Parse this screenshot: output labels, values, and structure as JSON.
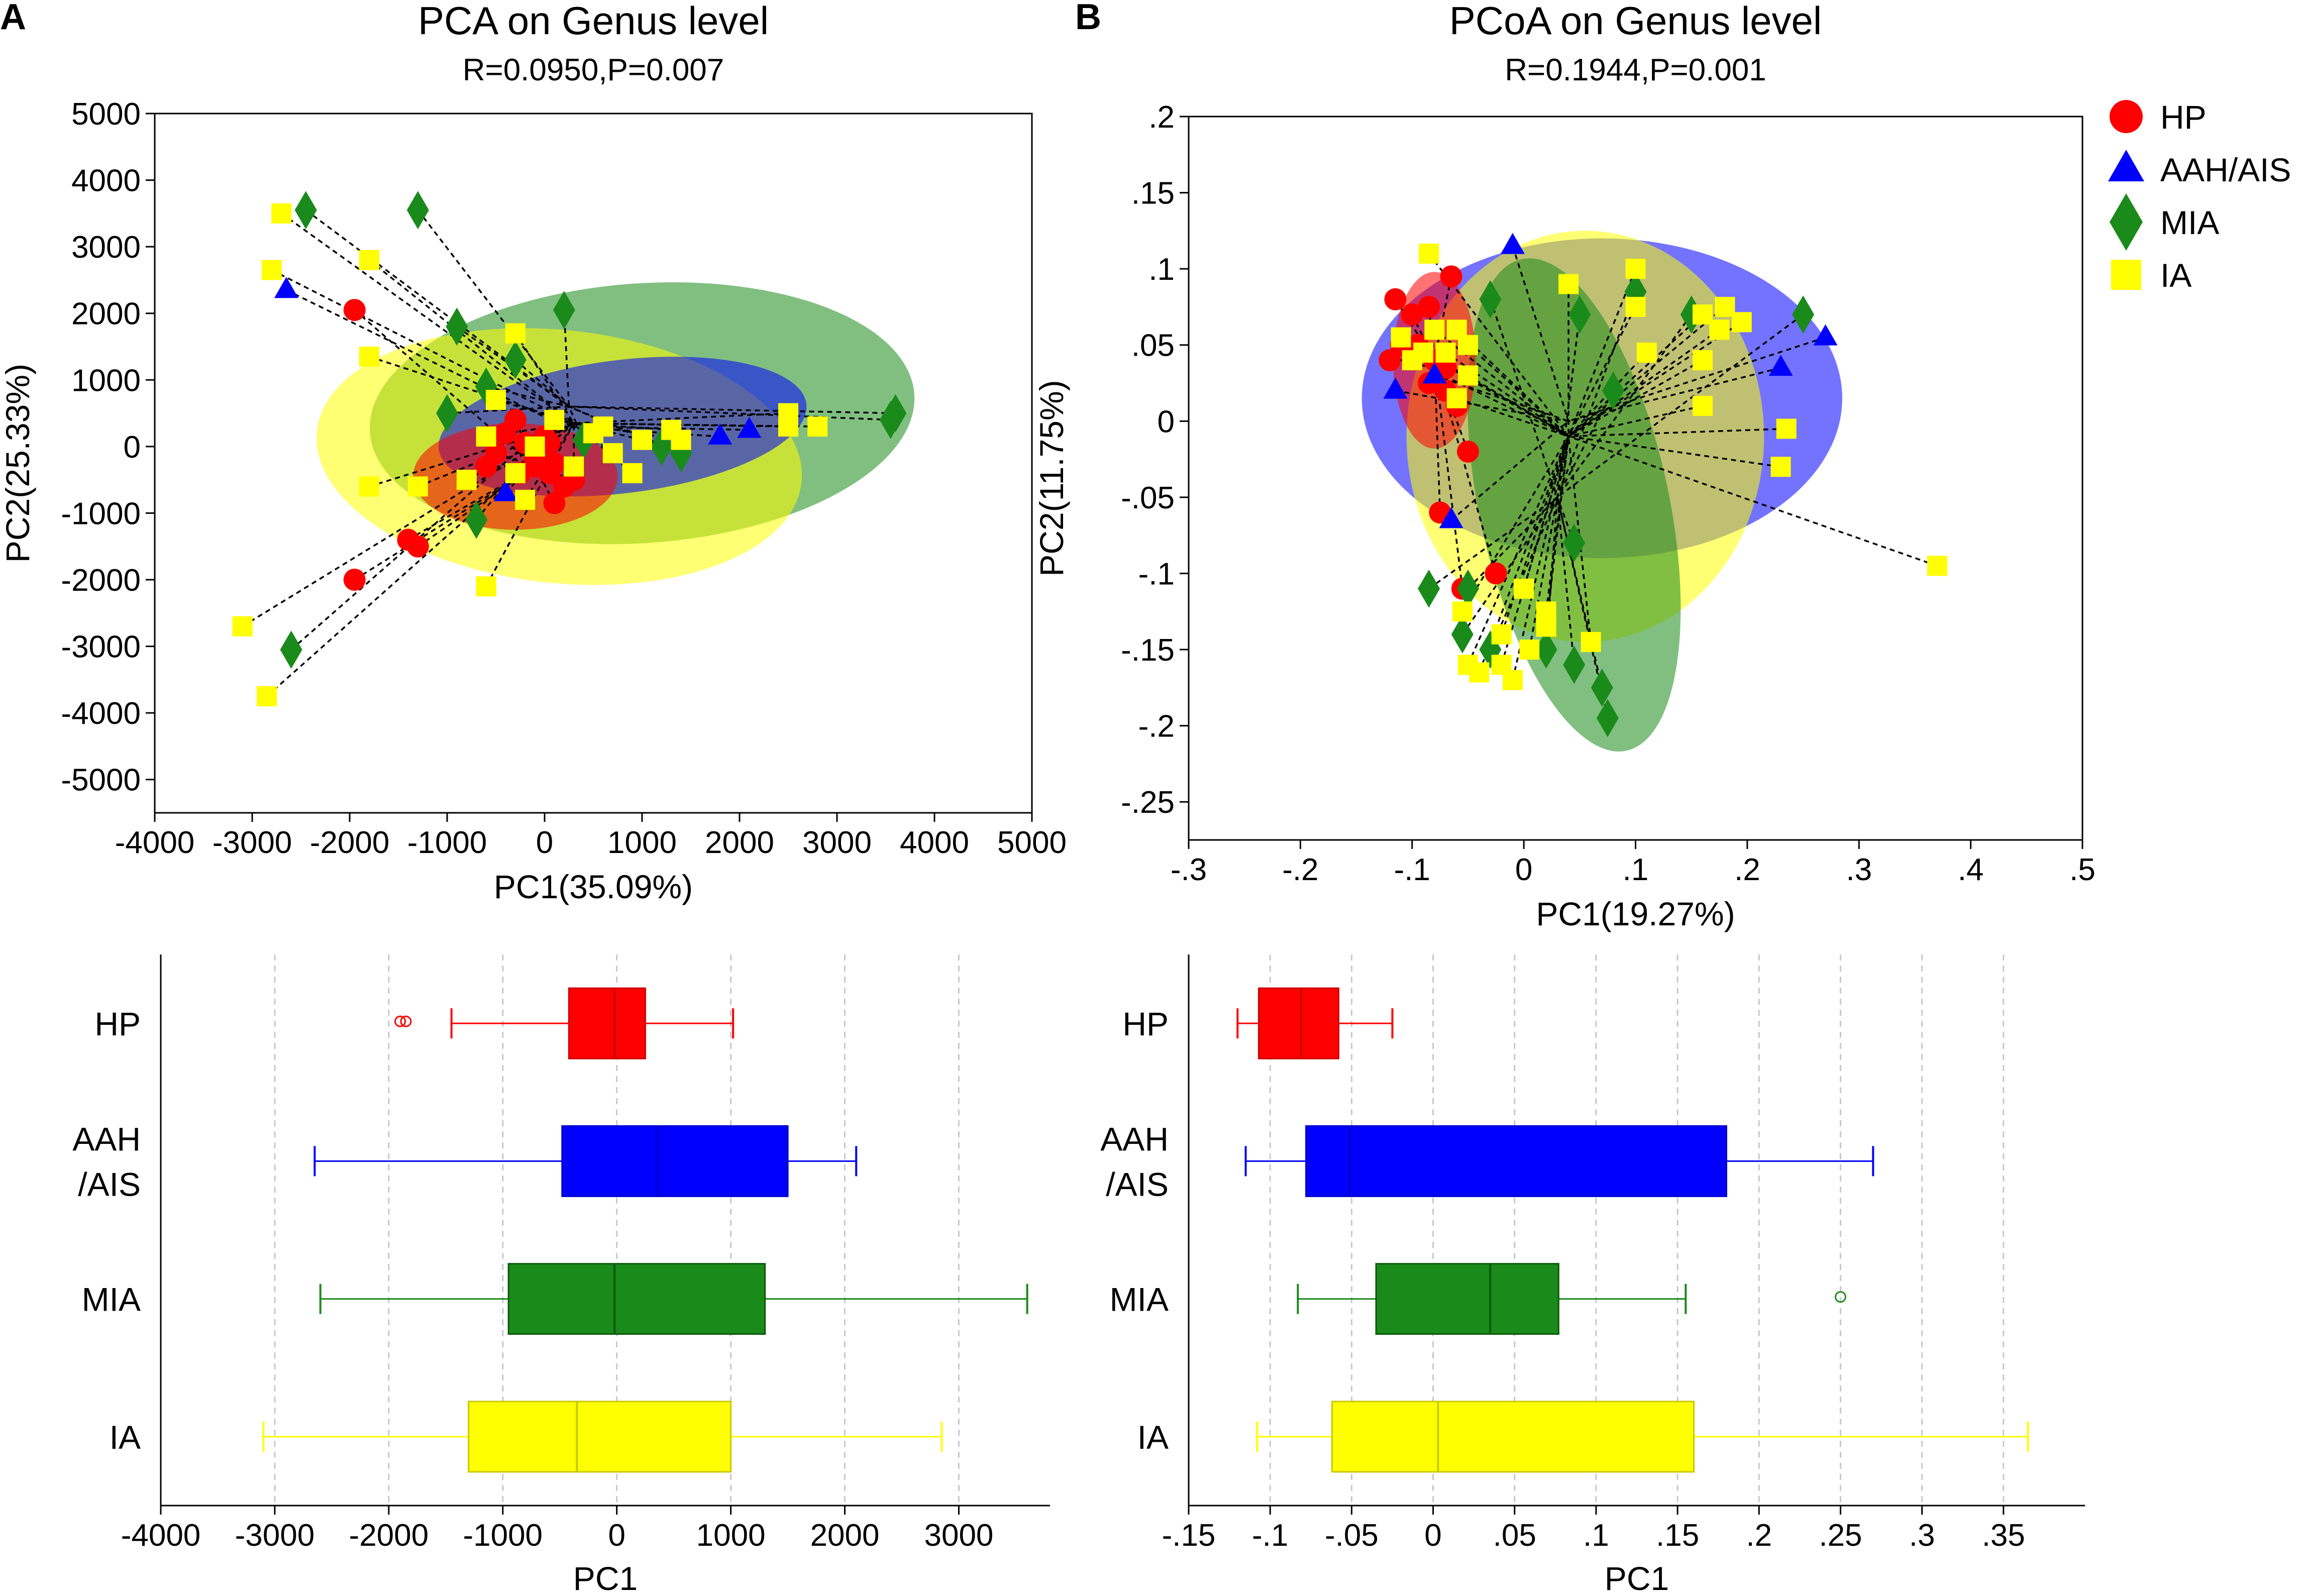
{
  "colors": {
    "HP": "#ff0000",
    "AAH/AIS": "#0000ff",
    "MIA": "#1a8a1a",
    "IA": "#ffff00"
  },
  "panels": {
    "A": "A",
    "B": "B"
  },
  "legend": [
    {
      "key": "HP",
      "label": "HP",
      "shape": "circle"
    },
    {
      "key": "AAH/AIS",
      "label": "AAH/AIS",
      "shape": "triangle"
    },
    {
      "key": "MIA",
      "label": "MIA",
      "shape": "diamond"
    },
    {
      "key": "IA",
      "label": "IA",
      "shape": "square"
    }
  ],
  "chart_data": [
    {
      "id": "pca",
      "type": "scatter",
      "title": "PCA on Genus level",
      "subtitle": "R=0.0950,P=0.007",
      "xlabel": "PC1(35.09%)",
      "ylabel": "PC2(25.33%)",
      "xlim": [
        -4000,
        5000
      ],
      "ylim": [
        -5500,
        5000
      ],
      "xticks": [
        -4000,
        -3000,
        -2000,
        -1000,
        0,
        1000,
        2000,
        3000,
        4000,
        5000
      ],
      "yticks": [
        -5000,
        -4000,
        -3000,
        -2000,
        -1000,
        0,
        1000,
        2000,
        3000,
        4000,
        5000
      ],
      "ellipses": [
        {
          "group": "MIA",
          "cx": 1000,
          "cy": 500,
          "rx": 2800,
          "ry": 1950,
          "angle": -4
        },
        {
          "group": "IA",
          "cx": 150,
          "cy": -150,
          "rx": 2500,
          "ry": 1900,
          "angle": 6
        },
        {
          "group": "AAH/AIS",
          "cx": 800,
          "cy": 300,
          "rx": 1900,
          "ry": 1000,
          "angle": -7
        },
        {
          "group": "HP",
          "cx": -300,
          "cy": -450,
          "rx": 1050,
          "ry": 800,
          "angle": 0
        }
      ],
      "centroids": {
        "HP": [
          -100,
          -300
        ],
        "AAH/AIS": [
          200,
          300
        ],
        "MIA": [
          250,
          600
        ],
        "IA": [
          300,
          350
        ]
      },
      "series": [
        {
          "name": "HP",
          "points": [
            [
              -1950,
              2050
            ],
            [
              -1950,
              -2000
            ],
            [
              -1400,
              -1400
            ],
            [
              -1300,
              -1500
            ],
            [
              -500,
              -100
            ],
            [
              -300,
              400
            ],
            [
              -200,
              50
            ],
            [
              -100,
              -300
            ],
            [
              0,
              150
            ],
            [
              50,
              -400
            ],
            [
              100,
              -250
            ],
            [
              200,
              -600
            ],
            [
              300,
              -500
            ],
            [
              100,
              -850
            ],
            [
              -100,
              -200
            ],
            [
              -250,
              -400
            ],
            [
              50,
              50
            ],
            [
              -600,
              -300
            ],
            [
              -400,
              200
            ]
          ]
        },
        {
          "name": "AAH/AIS",
          "points": [
            [
              -2650,
              2350
            ],
            [
              -400,
              -700
            ],
            [
              1800,
              150
            ],
            [
              2100,
              250
            ]
          ]
        },
        {
          "name": "MIA",
          "points": [
            [
              -2450,
              3550
            ],
            [
              -1300,
              3550
            ],
            [
              -900,
              1800
            ],
            [
              -600,
              900
            ],
            [
              -300,
              1300
            ],
            [
              200,
              2050
            ],
            [
              -1000,
              500
            ],
            [
              -700,
              -1100
            ],
            [
              -2600,
              -3050
            ],
            [
              400,
              100
            ],
            [
              1200,
              0
            ],
            [
              1400,
              -100
            ],
            [
              3550,
              400
            ],
            [
              3600,
              500
            ]
          ]
        },
        {
          "name": "IA",
          "points": [
            [
              -2700,
              3500
            ],
            [
              -2800,
              2650
            ],
            [
              -1800,
              2800
            ],
            [
              -1800,
              1350
            ],
            [
              -300,
              1700
            ],
            [
              -800,
              -500
            ],
            [
              -1300,
              -600
            ],
            [
              -1800,
              -600
            ],
            [
              -600,
              -2100
            ],
            [
              -3100,
              -2700
            ],
            [
              -2850,
              -3750
            ],
            [
              -500,
              700
            ],
            [
              -600,
              150
            ],
            [
              -300,
              -400
            ],
            [
              -100,
              0
            ],
            [
              100,
              400
            ],
            [
              500,
              200
            ],
            [
              700,
              -100
            ],
            [
              1000,
              100
            ],
            [
              1300,
              250
            ],
            [
              2500,
              500
            ],
            [
              2500,
              300
            ],
            [
              2800,
              300
            ],
            [
              -200,
              -800
            ],
            [
              300,
              -300
            ],
            [
              900,
              -400
            ],
            [
              600,
              300
            ],
            [
              1400,
              100
            ]
          ]
        }
      ]
    },
    {
      "id": "pcoa",
      "type": "scatter",
      "title": "PCoA on Genus level",
      "subtitle": "R=0.1944,P=0.001",
      "xlabel": "PC1(19.27%)",
      "ylabel": "PC2(11.75%)",
      "xlim": [
        -0.3,
        0.5
      ],
      "ylim": [
        -0.275,
        0.2
      ],
      "xticks": [
        -0.3,
        -0.2,
        -0.1,
        0,
        0.1,
        0.2,
        0.3,
        0.4,
        0.5
      ],
      "yticks": [
        -0.25,
        -0.2,
        -0.15,
        -0.1,
        -0.05,
        0,
        0.05,
        0.1,
        0.15,
        0.2
      ],
      "ellipses": [
        {
          "group": "AAH/AIS",
          "cx": 0.07,
          "cy": 0.015,
          "rx": 0.215,
          "ry": 0.105,
          "angle": 0
        },
        {
          "group": "IA",
          "cx": 0.055,
          "cy": -0.01,
          "rx": 0.16,
          "ry": 0.135,
          "angle": 0
        },
        {
          "group": "MIA",
          "cx": 0.045,
          "cy": -0.055,
          "rx": 0.085,
          "ry": 0.165,
          "angle": -12
        },
        {
          "group": "HP",
          "cx": -0.08,
          "cy": 0.04,
          "rx": 0.037,
          "ry": 0.058,
          "angle": 0
        }
      ],
      "centroids": {
        "HP": [
          -0.08,
          0.04
        ],
        "AAH/AIS": [
          0.04,
          0.0
        ],
        "MIA": [
          0.03,
          -0.05
        ],
        "IA": [
          0.04,
          -0.01
        ]
      },
      "series": [
        {
          "name": "HP",
          "points": [
            [
              -0.115,
              0.08
            ],
            [
              -0.1,
              0.07
            ],
            [
              -0.085,
              0.075
            ],
            [
              -0.065,
              0.095
            ],
            [
              -0.12,
              0.04
            ],
            [
              -0.11,
              0.05
            ],
            [
              -0.095,
              0.05
            ],
            [
              -0.08,
              0.04
            ],
            [
              -0.07,
              0.035
            ],
            [
              -0.085,
              0.025
            ],
            [
              -0.07,
              0.02
            ],
            [
              -0.06,
              0.01
            ],
            [
              -0.05,
              -0.02
            ],
            [
              -0.055,
              -0.11
            ],
            [
              -0.025,
              -0.1
            ],
            [
              -0.075,
              -0.06
            ]
          ]
        },
        {
          "name": "AAH/AIS",
          "points": [
            [
              -0.01,
              0.115
            ],
            [
              -0.115,
              0.02
            ],
            [
              -0.08,
              0.03
            ],
            [
              -0.065,
              -0.065
            ],
            [
              0.23,
              0.035
            ],
            [
              0.27,
              0.055
            ]
          ]
        },
        {
          "name": "MIA",
          "points": [
            [
              -0.03,
              0.08
            ],
            [
              0.05,
              0.07
            ],
            [
              0.1,
              0.085
            ],
            [
              0.15,
              0.07
            ],
            [
              0.08,
              0.02
            ],
            [
              0.25,
              0.07
            ],
            [
              -0.085,
              -0.11
            ],
            [
              -0.055,
              -0.14
            ],
            [
              -0.03,
              -0.15
            ],
            [
              0.02,
              -0.15
            ],
            [
              0.045,
              -0.16
            ],
            [
              0.045,
              -0.08
            ],
            [
              0.07,
              -0.175
            ],
            [
              0.075,
              -0.195
            ],
            [
              -0.05,
              -0.11
            ]
          ]
        },
        {
          "name": "IA",
          "points": [
            [
              -0.085,
              0.11
            ],
            [
              -0.11,
              0.055
            ],
            [
              -0.08,
              0.06
            ],
            [
              -0.06,
              0.06
            ],
            [
              -0.05,
              0.05
            ],
            [
              -0.07,
              0.045
            ],
            [
              -0.09,
              0.045
            ],
            [
              -0.1,
              0.04
            ],
            [
              -0.05,
              0.03
            ],
            [
              -0.06,
              0.015
            ],
            [
              0.04,
              0.09
            ],
            [
              0.1,
              0.1
            ],
            [
              0.1,
              0.075
            ],
            [
              0.11,
              0.045
            ],
            [
              0.16,
              0.04
            ],
            [
              0.16,
              0.07
            ],
            [
              0.18,
              0.075
            ],
            [
              0.195,
              0.065
            ],
            [
              0.175,
              0.06
            ],
            [
              0.16,
              0.01
            ],
            [
              0.235,
              -0.005
            ],
            [
              0.23,
              -0.03
            ],
            [
              0.37,
              -0.095
            ],
            [
              -0.055,
              -0.125
            ],
            [
              -0.05,
              -0.16
            ],
            [
              -0.04,
              -0.165
            ],
            [
              -0.02,
              -0.14
            ],
            [
              0.0,
              -0.11
            ],
            [
              0.02,
              -0.125
            ],
            [
              0.005,
              -0.15
            ],
            [
              -0.01,
              -0.17
            ],
            [
              0.02,
              -0.135
            ],
            [
              0.06,
              -0.145
            ],
            [
              -0.02,
              -0.16
            ]
          ]
        }
      ]
    },
    {
      "id": "box-pca",
      "type": "box",
      "orientation": "horizontal",
      "xlabel": "PC1",
      "xlim": [
        -4000,
        3800
      ],
      "xticks": [
        -4000,
        -3000,
        -2000,
        -1000,
        0,
        1000,
        2000,
        3000
      ],
      "grid": true,
      "groups": [
        {
          "key": "HP",
          "label_lines": [
            "HP"
          ],
          "whisker_low": -1450,
          "q1": -420,
          "median": -20,
          "q3": 250,
          "whisker_high": 1020,
          "outliers": [
            -1900,
            -1850
          ]
        },
        {
          "key": "AAH/AIS",
          "label_lines": [
            "AAH",
            "/AIS"
          ],
          "whisker_low": -2650,
          "q1": -480,
          "median": 350,
          "q3": 1500,
          "whisker_high": 2100,
          "outliers": []
        },
        {
          "key": "MIA",
          "label_lines": [
            "MIA"
          ],
          "whisker_low": -2600,
          "q1": -950,
          "median": -20,
          "q3": 1300,
          "whisker_high": 3600,
          "outliers": []
        },
        {
          "key": "IA",
          "label_lines": [
            "IA"
          ],
          "whisker_low": -3100,
          "q1": -1300,
          "median": -350,
          "q3": 1000,
          "whisker_high": 2850,
          "outliers": []
        }
      ]
    },
    {
      "id": "box-pcoa",
      "type": "box",
      "orientation": "horizontal",
      "xlabel": "PC1",
      "xlim": [
        -0.15,
        0.4
      ],
      "xticks": [
        -0.15,
        -0.1,
        -0.05,
        0,
        0.05,
        0.1,
        0.15,
        0.2,
        0.25,
        0.3,
        0.35
      ],
      "grid": true,
      "groups": [
        {
          "key": "HP",
          "label_lines": [
            "HP"
          ],
          "whisker_low": -0.12,
          "q1": -0.107,
          "median": -0.081,
          "q3": -0.058,
          "whisker_high": -0.025,
          "outliers": []
        },
        {
          "key": "AAH/AIS",
          "label_lines": [
            "AAH",
            "/AIS"
          ],
          "whisker_low": -0.115,
          "q1": -0.078,
          "median": -0.051,
          "q3": 0.18,
          "whisker_high": 0.27,
          "outliers": []
        },
        {
          "key": "MIA",
          "label_lines": [
            "MIA"
          ],
          "whisker_low": -0.083,
          "q1": -0.035,
          "median": 0.035,
          "q3": 0.077,
          "whisker_high": 0.155,
          "outliers": [
            0.25
          ]
        },
        {
          "key": "IA",
          "label_lines": [
            "IA"
          ],
          "whisker_low": -0.108,
          "q1": -0.062,
          "median": 0.003,
          "q3": 0.16,
          "whisker_high": 0.365,
          "outliers": []
        }
      ]
    }
  ]
}
